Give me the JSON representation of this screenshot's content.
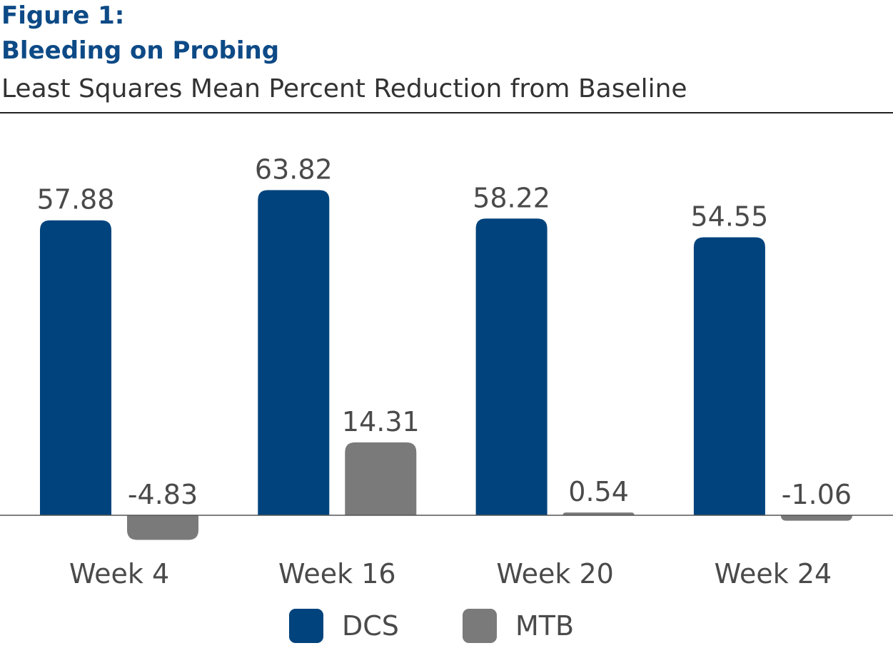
{
  "chart_data": {
    "type": "bar",
    "figure_label": "Figure 1:",
    "title": "Bleeding on Probing",
    "subtitle": "Least Squares Mean Percent Reduction from Baseline",
    "categories": [
      "Week 4",
      "Week 16",
      "Week 20",
      "Week 24"
    ],
    "series": [
      {
        "name": "DCS",
        "color": "#00437d",
        "values": [
          57.88,
          63.82,
          58.22,
          54.55
        ],
        "labels": [
          "57.88",
          "63.82",
          "58.22",
          "54.55"
        ]
      },
      {
        "name": "MTB",
        "color": "#7a7a7a",
        "values": [
          -4.83,
          14.31,
          0.54,
          -1.06
        ],
        "labels": [
          "-4.83",
          "14.31",
          "0.54",
          "-1.06"
        ]
      }
    ],
    "xlabel": "",
    "ylabel": "",
    "ylim": [
      -8,
      75
    ],
    "grid": false,
    "legend_position": "bottom-center"
  }
}
